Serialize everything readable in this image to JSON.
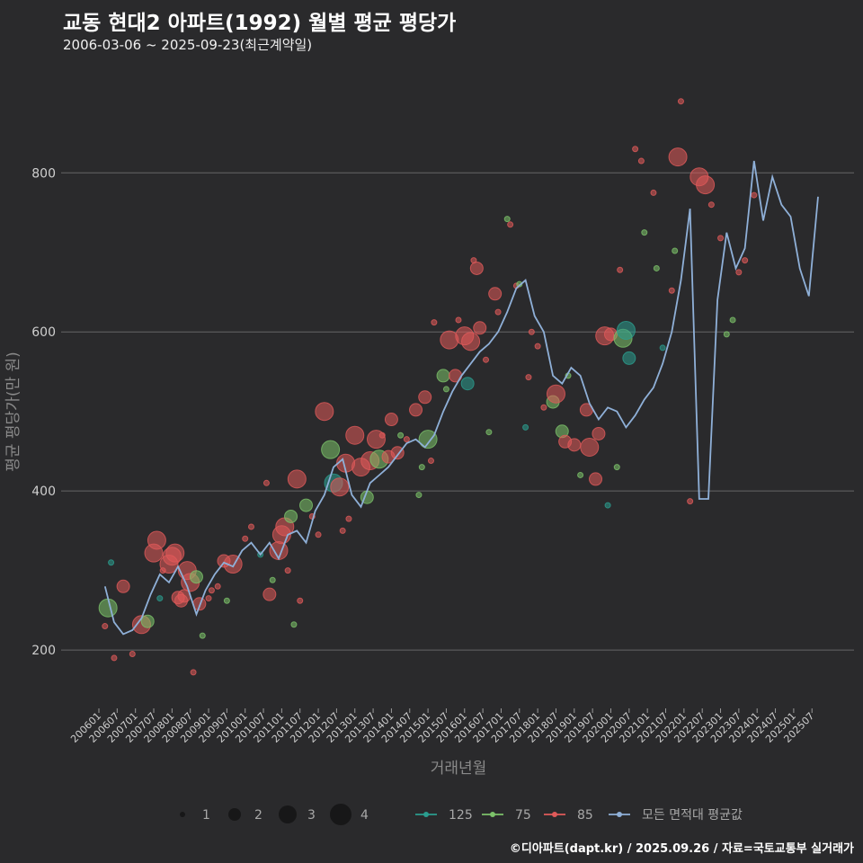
{
  "chart_data": {
    "type": "scatter+line",
    "title": "교동 현대2 아파트(1992) 월별 평균 평당가",
    "subtitle": "2006-03-06 ~ 2025-09-23(최근계약일)",
    "xlabel": "거래년월",
    "ylabel": "평균 평당가(만 원)",
    "ylim": [
      130,
      910
    ],
    "yticks": [
      200,
      400,
      600,
      800
    ],
    "grid": true,
    "x_start": "200601",
    "x_end": "202509",
    "xticks": [
      "200601",
      "200607",
      "200701",
      "200707",
      "200801",
      "200807",
      "200901",
      "200907",
      "201001",
      "201007",
      "201101",
      "201107",
      "201201",
      "201207",
      "201301",
      "201307",
      "201401",
      "201407",
      "201501",
      "201507",
      "201601",
      "201607",
      "201701",
      "201707",
      "201801",
      "201807",
      "201901",
      "201907",
      "202001",
      "202007",
      "202101",
      "202107",
      "202201",
      "202207",
      "202301",
      "202307",
      "202401",
      "202407",
      "202501",
      "202507"
    ],
    "series_colors": {
      "125": "#2a9d8f",
      "75": "#7cc26a",
      "85": "#e05a5a",
      "all": "#8fb0d8"
    },
    "size_legend": {
      "title": "",
      "values": [
        "1",
        "2",
        "3",
        "4"
      ]
    },
    "color_legend": [
      {
        "key": "125",
        "label": "125"
      },
      {
        "key": "75",
        "label": "75"
      },
      {
        "key": "85",
        "label": "85"
      },
      {
        "key": "all",
        "label": "모든 면적대 평균값"
      }
    ],
    "line": {
      "name": "모든 면적대 평균값",
      "points": [
        [
          "200603",
          280
        ],
        [
          "200606",
          235
        ],
        [
          "200609",
          220
        ],
        [
          "200612",
          225
        ],
        [
          "200703",
          240
        ],
        [
          "200706",
          270
        ],
        [
          "200709",
          295
        ],
        [
          "200712",
          285
        ],
        [
          "200803",
          305
        ],
        [
          "200806",
          280
        ],
        [
          "200809",
          245
        ],
        [
          "200812",
          275
        ],
        [
          "200903",
          295
        ],
        [
          "200906",
          310
        ],
        [
          "200909",
          305
        ],
        [
          "200912",
          325
        ],
        [
          "201003",
          335
        ],
        [
          "201006",
          320
        ],
        [
          "201009",
          335
        ],
        [
          "201012",
          315
        ],
        [
          "201103",
          345
        ],
        [
          "201106",
          350
        ],
        [
          "201109",
          335
        ],
        [
          "201112",
          375
        ],
        [
          "201203",
          395
        ],
        [
          "201206",
          430
        ],
        [
          "201209",
          440
        ],
        [
          "201212",
          395
        ],
        [
          "201303",
          380
        ],
        [
          "201306",
          410
        ],
        [
          "201309",
          420
        ],
        [
          "201312",
          430
        ],
        [
          "201403",
          445
        ],
        [
          "201406",
          460
        ],
        [
          "201409",
          465
        ],
        [
          "201412",
          455
        ],
        [
          "201503",
          470
        ],
        [
          "201506",
          500
        ],
        [
          "201509",
          525
        ],
        [
          "201512",
          545
        ],
        [
          "201603",
          560
        ],
        [
          "201606",
          575
        ],
        [
          "201609",
          585
        ],
        [
          "201612",
          600
        ],
        [
          "201703",
          625
        ],
        [
          "201706",
          655
        ],
        [
          "201709",
          665
        ],
        [
          "201712",
          620
        ],
        [
          "201803",
          600
        ],
        [
          "201806",
          545
        ],
        [
          "201809",
          535
        ],
        [
          "201812",
          555
        ],
        [
          "201903",
          545
        ],
        [
          "201906",
          510
        ],
        [
          "201909",
          490
        ],
        [
          "201912",
          505
        ],
        [
          "202003",
          500
        ],
        [
          "202006",
          480
        ],
        [
          "202009",
          495
        ],
        [
          "202012",
          515
        ],
        [
          "202103",
          530
        ],
        [
          "202106",
          560
        ],
        [
          "202109",
          600
        ],
        [
          "202112",
          665
        ],
        [
          "202203",
          755
        ],
        [
          "202206",
          390
        ],
        [
          "202209",
          390
        ],
        [
          "202212",
          640
        ],
        [
          "202303",
          725
        ],
        [
          "202306",
          680
        ],
        [
          "202309",
          705
        ],
        [
          "202312",
          815
        ],
        [
          "202403",
          740
        ],
        [
          "202406",
          795
        ],
        [
          "202409",
          760
        ],
        [
          "202412",
          745
        ],
        [
          "202503",
          680
        ],
        [
          "202506",
          645
        ],
        [
          "202509",
          770
        ]
      ]
    },
    "points": [
      [
        "200603",
        "85",
        1,
        230
      ],
      [
        "200604",
        "75",
        3,
        253
      ],
      [
        "200605",
        "125",
        1,
        310
      ],
      [
        "200606",
        "85",
        1,
        190
      ],
      [
        "200609",
        "85",
        2,
        280
      ],
      [
        "200612",
        "85",
        1,
        195
      ],
      [
        "200703",
        "85",
        3,
        232
      ],
      [
        "200705",
        "75",
        2,
        236
      ],
      [
        "200707",
        "85",
        3,
        322
      ],
      [
        "200708",
        "85",
        3,
        338
      ],
      [
        "200709",
        "125",
        1,
        265
      ],
      [
        "200710",
        "85",
        1,
        300
      ],
      [
        "200712",
        "85",
        3,
        308
      ],
      [
        "200801",
        "85",
        3,
        318
      ],
      [
        "200802",
        "85",
        3,
        322
      ],
      [
        "200803",
        "85",
        2,
        266
      ],
      [
        "200804",
        "85",
        2,
        262
      ],
      [
        "200805",
        "85",
        2,
        268
      ],
      [
        "200806",
        "85",
        3,
        300
      ],
      [
        "200807",
        "85",
        3,
        285
      ],
      [
        "200808",
        "85",
        1,
        172
      ],
      [
        "200809",
        "75",
        2,
        292
      ],
      [
        "200810",
        "85",
        2,
        258
      ],
      [
        "200811",
        "75",
        1,
        218
      ],
      [
        "200901",
        "85",
        1,
        265
      ],
      [
        "200902",
        "85",
        1,
        275
      ],
      [
        "200904",
        "85",
        1,
        280
      ],
      [
        "200906",
        "85",
        2,
        312
      ],
      [
        "200907",
        "75",
        1,
        262
      ],
      [
        "200909",
        "85",
        3,
        308
      ],
      [
        "201001",
        "85",
        1,
        340
      ],
      [
        "201003",
        "85",
        1,
        355
      ],
      [
        "201006",
        "125",
        1,
        320
      ],
      [
        "201008",
        "85",
        1,
        410
      ],
      [
        "201009",
        "85",
        2,
        270
      ],
      [
        "201010",
        "75",
        1,
        288
      ],
      [
        "201012",
        "85",
        3,
        325
      ],
      [
        "201101",
        "85",
        3,
        345
      ],
      [
        "201102",
        "85",
        3,
        355
      ],
      [
        "201103",
        "85",
        1,
        300
      ],
      [
        "201104",
        "75",
        2,
        368
      ],
      [
        "201105",
        "75",
        1,
        232
      ],
      [
        "201106",
        "85",
        3,
        415
      ],
      [
        "201107",
        "85",
        1,
        262
      ],
      [
        "201109",
        "75",
        2,
        382
      ],
      [
        "201111",
        "85",
        1,
        368
      ],
      [
        "201201",
        "85",
        1,
        345
      ],
      [
        "201203",
        "85",
        3,
        500
      ],
      [
        "201205",
        "75",
        3,
        452
      ],
      [
        "201206",
        "125",
        3,
        410
      ],
      [
        "201208",
        "85",
        3,
        405
      ],
      [
        "201209",
        "85",
        1,
        350
      ],
      [
        "201210",
        "85",
        3,
        435
      ],
      [
        "201211",
        "85",
        1,
        365
      ],
      [
        "201301",
        "85",
        3,
        470
      ],
      [
        "201303",
        "85",
        3,
        430
      ],
      [
        "201305",
        "75",
        2,
        392
      ],
      [
        "201306",
        "85",
        3,
        438
      ],
      [
        "201308",
        "85",
        3,
        465
      ],
      [
        "201309",
        "75",
        3,
        440
      ],
      [
        "201310",
        "85",
        1,
        470
      ],
      [
        "201312",
        "85",
        2,
        443
      ],
      [
        "201401",
        "85",
        2,
        490
      ],
      [
        "201403",
        "85",
        2,
        448
      ],
      [
        "201404",
        "75",
        1,
        470
      ],
      [
        "201406",
        "85",
        1,
        465
      ],
      [
        "201409",
        "85",
        2,
        502
      ],
      [
        "201410",
        "75",
        1,
        395
      ],
      [
        "201411",
        "75",
        1,
        430
      ],
      [
        "201412",
        "85",
        2,
        518
      ],
      [
        "201501",
        "75",
        3,
        465
      ],
      [
        "201502",
        "85",
        1,
        438
      ],
      [
        "201503",
        "85",
        1,
        612
      ],
      [
        "201506",
        "75",
        2,
        545
      ],
      [
        "201507",
        "75",
        1,
        528
      ],
      [
        "201508",
        "85",
        3,
        590
      ],
      [
        "201510",
        "85",
        2,
        545
      ],
      [
        "201511",
        "85",
        1,
        615
      ],
      [
        "201601",
        "85",
        3,
        595
      ],
      [
        "201602",
        "125",
        2,
        535
      ],
      [
        "201603",
        "85",
        3,
        588
      ],
      [
        "201604",
        "85",
        1,
        690
      ],
      [
        "201605",
        "85",
        2,
        680
      ],
      [
        "201606",
        "85",
        2,
        605
      ],
      [
        "201608",
        "85",
        1,
        565
      ],
      [
        "201609",
        "75",
        1,
        474
      ],
      [
        "201611",
        "85",
        2,
        648
      ],
      [
        "201612",
        "85",
        1,
        625
      ],
      [
        "201703",
        "75",
        1,
        742
      ],
      [
        "201704",
        "85",
        1,
        735
      ],
      [
        "201706",
        "85",
        1,
        658
      ],
      [
        "201707",
        "75",
        1,
        660
      ],
      [
        "201709",
        "125",
        1,
        480
      ],
      [
        "201710",
        "85",
        1,
        543
      ],
      [
        "201711",
        "85",
        1,
        600
      ],
      [
        "201801",
        "85",
        1,
        582
      ],
      [
        "201803",
        "85",
        1,
        505
      ],
      [
        "201806",
        "75",
        2,
        512
      ],
      [
        "201807",
        "85",
        3,
        522
      ],
      [
        "201809",
        "75",
        2,
        475
      ],
      [
        "201810",
        "85",
        2,
        462
      ],
      [
        "201811",
        "75",
        1,
        545
      ],
      [
        "201901",
        "85",
        2,
        458
      ],
      [
        "201903",
        "75",
        1,
        420
      ],
      [
        "201905",
        "85",
        2,
        502
      ],
      [
        "201906",
        "85",
        3,
        455
      ],
      [
        "201908",
        "85",
        2,
        415
      ],
      [
        "201909",
        "85",
        2,
        472
      ],
      [
        "201911",
        "85",
        3,
        595
      ],
      [
        "201912",
        "125",
        1,
        382
      ],
      [
        "202001",
        "85",
        2,
        597
      ],
      [
        "202003",
        "75",
        1,
        430
      ],
      [
        "202004",
        "85",
        1,
        678
      ],
      [
        "202005",
        "75",
        3,
        592
      ],
      [
        "202006",
        "125",
        3,
        602
      ],
      [
        "202007",
        "125",
        2,
        567
      ],
      [
        "202009",
        "85",
        1,
        830
      ],
      [
        "202011",
        "85",
        1,
        815
      ],
      [
        "202012",
        "75",
        1,
        725
      ],
      [
        "202103",
        "85",
        1,
        775
      ],
      [
        "202104",
        "75",
        1,
        680
      ],
      [
        "202106",
        "125",
        1,
        580
      ],
      [
        "202109",
        "85",
        1,
        652
      ],
      [
        "202110",
        "75",
        1,
        702
      ],
      [
        "202111",
        "85",
        3,
        820
      ],
      [
        "202112",
        "85",
        1,
        890
      ],
      [
        "202203",
        "85",
        1,
        387
      ],
      [
        "202206",
        "85",
        3,
        795
      ],
      [
        "202208",
        "85",
        3,
        785
      ],
      [
        "202210",
        "85",
        1,
        760
      ],
      [
        "202301",
        "85",
        1,
        718
      ],
      [
        "202303",
        "75",
        1,
        597
      ],
      [
        "202305",
        "75",
        1,
        615
      ],
      [
        "202307",
        "85",
        1,
        675
      ],
      [
        "202309",
        "85",
        1,
        690
      ],
      [
        "202312",
        "85",
        1,
        772
      ]
    ]
  },
  "footer": "©디아파트(dapt.kr) / 2025.09.26 / 자료=국토교통부 실거래가"
}
